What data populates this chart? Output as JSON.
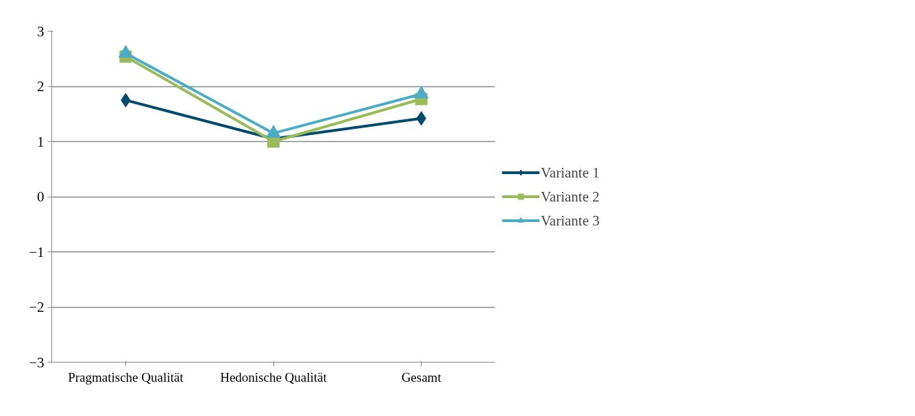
{
  "chart_data": {
    "type": "line",
    "categories": [
      "Pragmatische Qualität",
      "Hedonische Qualität",
      "Gesamt"
    ],
    "series": [
      {
        "name": "Variante 1",
        "color": "#004b6b",
        "values": [
          1.75,
          1.05,
          1.42
        ],
        "marker": "diamond"
      },
      {
        "name": "Variante 2",
        "color": "#9bbb59",
        "values": [
          2.54,
          1.0,
          1.77
        ],
        "marker": "square"
      },
      {
        "name": "Variante 3",
        "color": "#4bacc6",
        "values": [
          2.6,
          1.15,
          1.86
        ],
        "marker": "triangle"
      }
    ],
    "ylim": [
      -3,
      3
    ],
    "yticks": [
      -3,
      -2,
      -1,
      0,
      1,
      2,
      3
    ],
    "grid": "y",
    "legend": "right"
  }
}
